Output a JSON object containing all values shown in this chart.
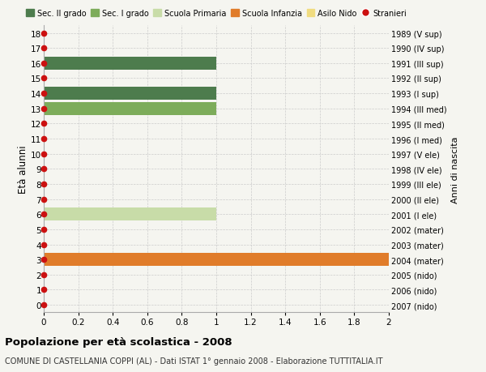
{
  "ages": [
    0,
    1,
    2,
    3,
    4,
    5,
    6,
    7,
    8,
    9,
    10,
    11,
    12,
    13,
    14,
    15,
    16,
    17,
    18
  ],
  "right_labels": [
    "2007 (nido)",
    "2006 (nido)",
    "2005 (nido)",
    "2004 (mater)",
    "2003 (mater)",
    "2002 (mater)",
    "2001 (I ele)",
    "2000 (II ele)",
    "1999 (III ele)",
    "1998 (IV ele)",
    "1997 (V ele)",
    "1996 (I med)",
    "1995 (II med)",
    "1994 (III med)",
    "1993 (I sup)",
    "1992 (II sup)",
    "1991 (III sup)",
    "1990 (IV sup)",
    "1989 (V sup)"
  ],
  "bars": [
    {
      "age": 16,
      "value": 1.0,
      "color": "#4d7c4d"
    },
    {
      "age": 14,
      "value": 1.0,
      "color": "#4d7c4d"
    },
    {
      "age": 13,
      "value": 1.0,
      "color": "#7dac5a"
    },
    {
      "age": 6,
      "value": 1.0,
      "color": "#c8dca8"
    },
    {
      "age": 3,
      "value": 2.0,
      "color": "#e07c2a"
    }
  ],
  "legend_items": [
    {
      "label": "Sec. II grado",
      "color": "#4d7c4d",
      "type": "patch"
    },
    {
      "label": "Sec. I grado",
      "color": "#7dac5a",
      "type": "patch"
    },
    {
      "label": "Scuola Primaria",
      "color": "#c8dca8",
      "type": "patch"
    },
    {
      "label": "Scuola Infanzia",
      "color": "#e07c2a",
      "type": "patch"
    },
    {
      "label": "Asilo Nido",
      "color": "#f0dc80",
      "type": "patch"
    },
    {
      "label": "Stranieri",
      "color": "#cc1111",
      "type": "circle"
    }
  ],
  "xlim": [
    0,
    2.0
  ],
  "xticks": [
    0,
    0.2,
    0.4,
    0.6,
    0.8,
    1.0,
    1.2,
    1.4,
    1.6,
    1.8,
    2.0
  ],
  "ylim": [
    -0.5,
    18.5
  ],
  "ylabel_left": "Età alunni",
  "ylabel_right": "Anni di nascita",
  "title": "Popolazione per età scolastica - 2008",
  "subtitle": "COMUNE DI CASTELLANIA COPPI (AL) - Dati ISTAT 1° gennaio 2008 - Elaborazione TUTTITALIA.IT",
  "bg_color": "#f5f5f0",
  "bar_height": 0.85,
  "stranieri_color": "#cc1111",
  "stranieri_size": 4.5,
  "grid_color": "#cccccc"
}
